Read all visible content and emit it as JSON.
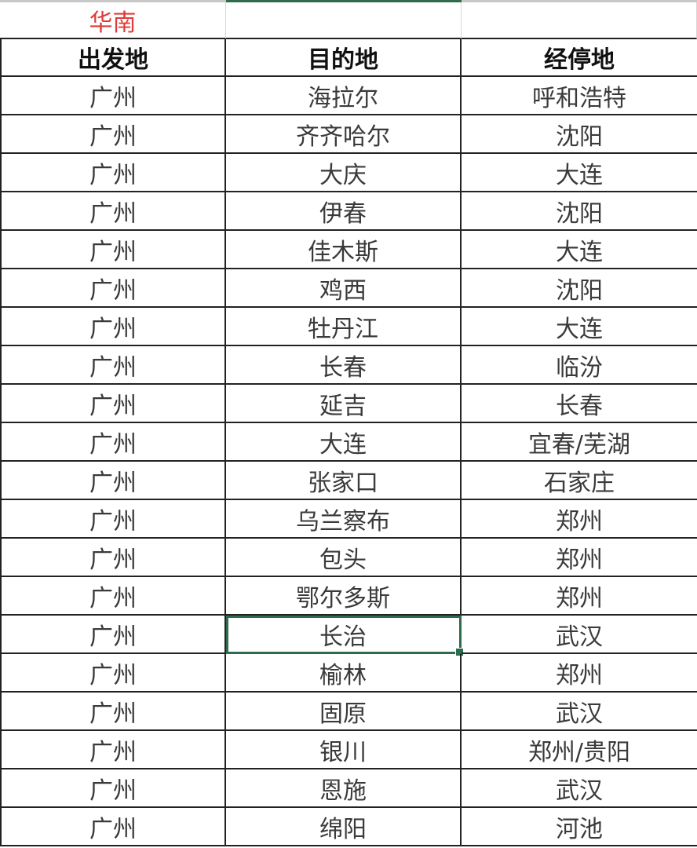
{
  "region_label": "华南",
  "columns": [
    "出发地",
    "目的地",
    "经停地"
  ],
  "rows": [
    [
      "广州",
      "海拉尔",
      "呼和浩特"
    ],
    [
      "广州",
      "齐齐哈尔",
      "沈阳"
    ],
    [
      "广州",
      "大庆",
      "大连"
    ],
    [
      "广州",
      "伊春",
      "沈阳"
    ],
    [
      "广州",
      "佳木斯",
      "大连"
    ],
    [
      "广州",
      "鸡西",
      "沈阳"
    ],
    [
      "广州",
      "牡丹江",
      "大连"
    ],
    [
      "广州",
      "长春",
      "临汾"
    ],
    [
      "广州",
      "延吉",
      "长春"
    ],
    [
      "广州",
      "大连",
      "宜春/芜湖"
    ],
    [
      "广州",
      "张家口",
      "石家庄"
    ],
    [
      "广州",
      "乌兰察布",
      "郑州"
    ],
    [
      "广州",
      "包头",
      "郑州"
    ],
    [
      "广州",
      "鄂尔多斯",
      "郑州"
    ],
    [
      "广州",
      "长治",
      "武汉"
    ],
    [
      "广州",
      "榆林",
      "郑州"
    ],
    [
      "广州",
      "固原",
      "武汉"
    ],
    [
      "广州",
      "银川",
      "郑州/贵阳"
    ],
    [
      "广州",
      "恩施",
      "武汉"
    ],
    [
      "广州",
      "绵阳",
      "河池"
    ]
  ],
  "selected_cell": {
    "row": 14,
    "col": 1
  },
  "colors": {
    "region_label": "#e03a3a",
    "selection": "#2e6b4f"
  }
}
